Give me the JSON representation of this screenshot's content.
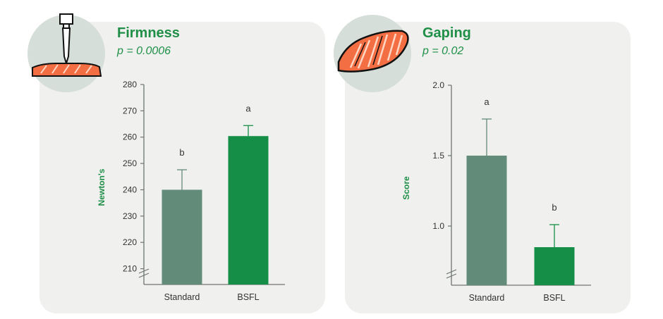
{
  "colors": {
    "standard_bar": "#628b7a",
    "bsfl_bar": "#158f47",
    "title": "#1f8f47",
    "axis": "#6f7570",
    "text": "#333333",
    "salmon": "#f36f43"
  },
  "icons": {
    "left": "salmon-firmness-probe-icon",
    "right": "salmon-fillet-gaping-icon"
  },
  "chart_data": [
    {
      "type": "bar",
      "title": "Firmness",
      "subtitle": "p = 0.0006",
      "xlabel": "",
      "ylabel": "Newton's",
      "ylim": [
        204,
        280
      ],
      "yticks": [
        210,
        220,
        230,
        240,
        250,
        260,
        270,
        280
      ],
      "ytick_labels": [
        "210",
        "220",
        "230",
        "240",
        "250",
        "260",
        "270",
        "280"
      ],
      "axis_break": true,
      "grid": false,
      "categories": [
        "Standard",
        "BSFL"
      ],
      "values": [
        240,
        260.4
      ],
      "error_upper": [
        7.6,
        4.0
      ],
      "significance": [
        "b",
        "a"
      ]
    },
    {
      "type": "bar",
      "title": "Gaping",
      "subtitle": "p = 0.02",
      "xlabel": "",
      "ylabel": "Score",
      "ylim": [
        0.58,
        2.0
      ],
      "yticks": [
        1.0,
        1.5,
        2.0
      ],
      "ytick_labels": [
        "1.0",
        "1.5",
        "2.0"
      ],
      "axis_break": true,
      "grid": false,
      "categories": [
        "Standard",
        "BSFL"
      ],
      "values": [
        1.5,
        0.85
      ],
      "error_upper": [
        0.26,
        0.16
      ],
      "significance": [
        "a",
        "b"
      ]
    }
  ]
}
